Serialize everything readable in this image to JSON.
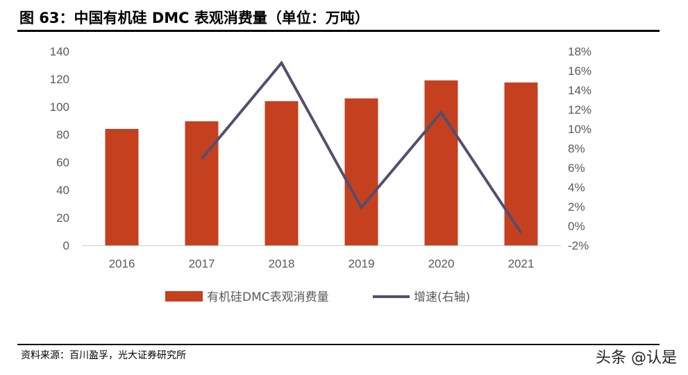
{
  "title": "图 63：中国有机硅 DMC 表观消费量（单位：万吨）",
  "source": "资料来源：百川盈孚，光大证券研究所",
  "watermark": "头条 @认是",
  "chart_data": {
    "type": "bar+line",
    "categories": [
      "2016",
      "2017",
      "2018",
      "2019",
      "2020",
      "2021"
    ],
    "series": [
      {
        "name": "有机硅DMC表观消费量",
        "type": "bar",
        "axis": "left",
        "color": "#C5401F",
        "values": [
          84,
          89.5,
          104,
          106,
          119,
          117.5
        ]
      },
      {
        "name": "增速(右轴)",
        "type": "line",
        "axis": "right",
        "color": "#524F6E",
        "values": [
          null,
          6.9,
          16.8,
          1.9,
          11.7,
          -0.7
        ]
      }
    ],
    "left_axis": {
      "ylim": [
        0,
        140
      ],
      "ticks": [
        "0",
        "20",
        "40",
        "60",
        "80",
        "100",
        "120",
        "140"
      ]
    },
    "right_axis": {
      "ylim": [
        -2,
        18
      ],
      "unit": "%",
      "ticks": [
        "-2%",
        "0%",
        "2%",
        "4%",
        "6%",
        "8%",
        "10%",
        "12%",
        "14%",
        "16%",
        "18%"
      ]
    },
    "grid": false,
    "legend": "bottom"
  }
}
